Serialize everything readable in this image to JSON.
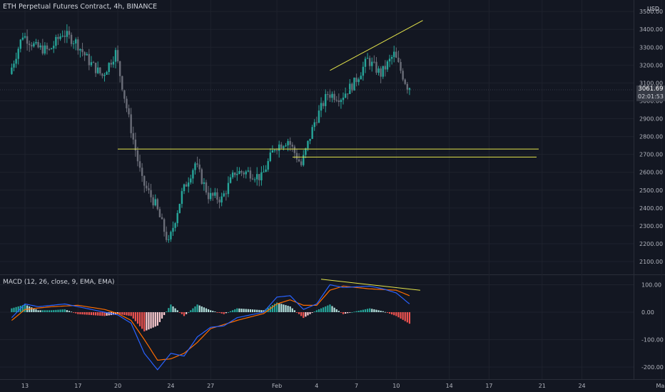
{
  "header": {
    "symbol_line": "ETH Perpetual Futures Contract, 4h, BINANCE"
  },
  "currency": "USD",
  "last_price": {
    "value": "3061.69",
    "countdown": "02:01:53"
  },
  "indicator_label": "MACD (12, 26, close, 9, EMA, EMA)",
  "colors": {
    "background": "#131722",
    "up": "#26a69a",
    "down": "#ef5350",
    "grid": "#1e222d",
    "annotation": "#e5e54b",
    "macd_line": "#2962ff",
    "signal_line": "#ff6d00"
  },
  "chart_data": [
    {
      "type": "candlestick",
      "y_ticks": [
        2100,
        2200,
        2300,
        2400,
        2500,
        2600,
        2700,
        2800,
        2900,
        3000,
        3100,
        3200,
        3300,
        3400,
        3500
      ],
      "y_tick_labels": [
        "2100.00",
        "2200.00",
        "2300.00",
        "2400.00",
        "2500.00",
        "2600.00",
        "2700.00",
        "2800.00",
        "2900.00",
        "3000.00",
        "3100.00",
        "3200.00",
        "3300.00",
        "3400.00",
        "3500.00"
      ],
      "x_tick_labels": [
        "13",
        "17",
        "20",
        "24",
        "27",
        "Feb",
        "4",
        "7",
        "10",
        "14",
        "17",
        "21",
        "24",
        "Mar"
      ],
      "last_price": 3061.69,
      "annotations": {
        "horizontal_lines": [
          2730,
          2685
        ],
        "trend_line": {
          "from": {
            "x": "Feb 5",
            "y": 3170
          },
          "to": {
            "x": "Feb 12",
            "y": 3450
          }
        }
      },
      "price_path": [
        {
          "x": "Jan 12",
          "y": 3150
        },
        {
          "x": "Jan 13",
          "y": 3370
        },
        {
          "x": "Jan 14",
          "y": 3300
        },
        {
          "x": "Jan 15",
          "y": 3280
        },
        {
          "x": "Jan 16",
          "y": 3380
        },
        {
          "x": "Jan 17",
          "y": 3330
        },
        {
          "x": "Jan 18",
          "y": 3220
        },
        {
          "x": "Jan 19",
          "y": 3140
        },
        {
          "x": "Jan 20",
          "y": 3270
        },
        {
          "x": "Jan 21",
          "y": 2900
        },
        {
          "x": "Jan 22",
          "y": 2550
        },
        {
          "x": "Jan 23",
          "y": 2420
        },
        {
          "x": "Jan 24",
          "y": 2200
        },
        {
          "x": "Jan 25",
          "y": 2480
        },
        {
          "x": "Jan 26",
          "y": 2650
        },
        {
          "x": "Jan 27",
          "y": 2470
        },
        {
          "x": "Jan 28",
          "y": 2450
        },
        {
          "x": "Jan 29",
          "y": 2600
        },
        {
          "x": "Jan 30",
          "y": 2600
        },
        {
          "x": "Jan 31",
          "y": 2570
        },
        {
          "x": "Feb 1",
          "y": 2740
        },
        {
          "x": "Feb 2",
          "y": 2780
        },
        {
          "x": "Feb 3",
          "y": 2640
        },
        {
          "x": "Feb 4",
          "y": 2880
        },
        {
          "x": "Feb 5",
          "y": 3040
        },
        {
          "x": "Feb 6",
          "y": 3020
        },
        {
          "x": "Feb 7",
          "y": 3100
        },
        {
          "x": "Feb 8",
          "y": 3230
        },
        {
          "x": "Feb 9",
          "y": 3150
        },
        {
          "x": "Feb 10",
          "y": 3260
        },
        {
          "x": "Feb 11",
          "y": 3080
        }
      ]
    },
    {
      "type": "macd",
      "y_ticks": [
        100,
        0,
        -100,
        -200
      ],
      "y_tick_labels": [
        "100.00",
        "0.00",
        "-100.00",
        "-200.00"
      ],
      "annotations": {
        "divergence_line": {
          "from": {
            "x": "Feb 5",
            "y": 120
          },
          "to": {
            "x": "Feb 11",
            "y": 80
          }
        }
      },
      "macd_path": [
        {
          "x": "Jan 12",
          "y": -20
        },
        {
          "x": "Jan 13",
          "y": 30
        },
        {
          "x": "Jan 14",
          "y": 20
        },
        {
          "x": "Jan 16",
          "y": 30
        },
        {
          "x": "Jan 18",
          "y": 10
        },
        {
          "x": "Jan 20",
          "y": -10
        },
        {
          "x": "Jan 21",
          "y": -40
        },
        {
          "x": "Jan 22",
          "y": -150
        },
        {
          "x": "Jan 23",
          "y": -210
        },
        {
          "x": "Jan 24",
          "y": -150
        },
        {
          "x": "Jan 25",
          "y": -160
        },
        {
          "x": "Jan 26",
          "y": -90
        },
        {
          "x": "Jan 27",
          "y": -55
        },
        {
          "x": "Jan 28",
          "y": -50
        },
        {
          "x": "Jan 29",
          "y": -20
        },
        {
          "x": "Jan 31",
          "y": 0
        },
        {
          "x": "Feb 1",
          "y": 55
        },
        {
          "x": "Feb 2",
          "y": 60
        },
        {
          "x": "Feb 3",
          "y": 10
        },
        {
          "x": "Feb 4",
          "y": 30
        },
        {
          "x": "Feb 5",
          "y": 100
        },
        {
          "x": "Feb 6",
          "y": 90
        },
        {
          "x": "Feb 8",
          "y": 95
        },
        {
          "x": "Feb 9",
          "y": 85
        },
        {
          "x": "Feb 10",
          "y": 70
        },
        {
          "x": "Feb 11",
          "y": 30
        }
      ],
      "signal_path": [
        {
          "x": "Jan 12",
          "y": -30
        },
        {
          "x": "Jan 13",
          "y": 10
        },
        {
          "x": "Jan 15",
          "y": 20
        },
        {
          "x": "Jan 17",
          "y": 25
        },
        {
          "x": "Jan 19",
          "y": 10
        },
        {
          "x": "Jan 20",
          "y": -5
        },
        {
          "x": "Jan 21",
          "y": -30
        },
        {
          "x": "Jan 22",
          "y": -100
        },
        {
          "x": "Jan 23",
          "y": -175
        },
        {
          "x": "Jan 24",
          "y": -170
        },
        {
          "x": "Jan 25",
          "y": -150
        },
        {
          "x": "Jan 26",
          "y": -110
        },
        {
          "x": "Jan 27",
          "y": -60
        },
        {
          "x": "Jan 29",
          "y": -30
        },
        {
          "x": "Jan 31",
          "y": -5
        },
        {
          "x": "Feb 1",
          "y": 30
        },
        {
          "x": "Feb 2",
          "y": 45
        },
        {
          "x": "Feb 3",
          "y": 25
        },
        {
          "x": "Feb 4",
          "y": 25
        },
        {
          "x": "Feb 5",
          "y": 80
        },
        {
          "x": "Feb 6",
          "y": 95
        },
        {
          "x": "Feb 8",
          "y": 85
        },
        {
          "x": "Feb 10",
          "y": 80
        },
        {
          "x": "Feb 11",
          "y": 60
        }
      ]
    }
  ]
}
